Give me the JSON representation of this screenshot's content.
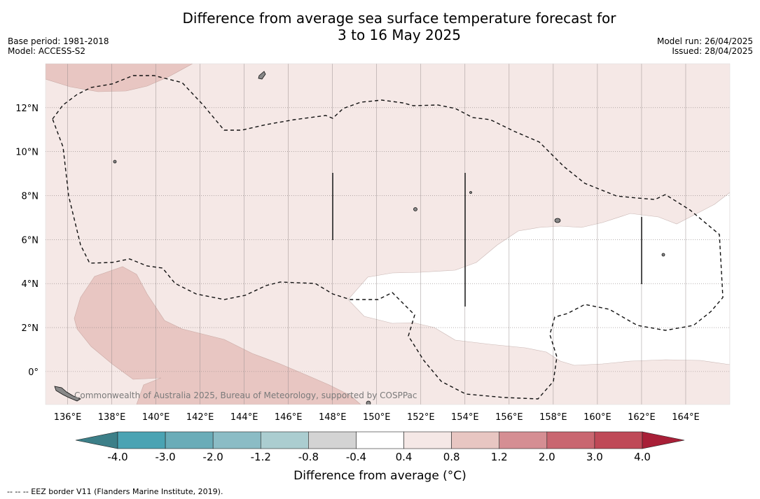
{
  "title_line1": "Difference from average sea surface temperature forecast for",
  "title_line2": "3 to 16 May 2025",
  "meta_left": {
    "base_period": "Base period: 1981-2018",
    "model": "Model: ACCESS-S2"
  },
  "meta_right": {
    "model_run": "Model run: 26/04/2025",
    "issued": "Issued: 28/04/2025"
  },
  "map": {
    "lon_range": [
      135,
      166
    ],
    "lat_range": [
      -1.5,
      14
    ],
    "lon_ticks": [
      "136°E",
      "138°E",
      "140°E",
      "142°E",
      "144°E",
      "146°E",
      "148°E",
      "150°E",
      "152°E",
      "154°E",
      "156°E",
      "158°E",
      "160°E",
      "162°E",
      "164°E"
    ],
    "lat_ticks": [
      "12°N",
      "10°N",
      "8°N",
      "6°N",
      "4°N",
      "2°N",
      "0°"
    ],
    "copyright": "Commonwealth of Australia 2025, Bureau of Meteorology, supported by COSPPac",
    "colors": {
      "band_0_4_0_8": "#f5e8e6",
      "band_0_8_1_2": "#e8c6c2",
      "band_neutral": "#ffffff"
    }
  },
  "colorbar": {
    "label": "Difference from average (°C)",
    "tick_labels": [
      "-4.0",
      "-3.0",
      "-2.0",
      "-1.2",
      "-0.8",
      "-0.4",
      "0.4",
      "0.8",
      "1.2",
      "2.0",
      "3.0",
      "4.0"
    ],
    "colors": [
      "#3c7f88",
      "#4aa3b3",
      "#6aacb8",
      "#8bbcc5",
      "#abcdd0",
      "#d3d3d3",
      "#ffffff",
      "#f5e8e6",
      "#e8c6c2",
      "#d58e93",
      "#c96670",
      "#bf4957",
      "#a81f37"
    ]
  },
  "footnote": "--  --  -- EEZ border V11 (Flanders Marine Institute, 2019)."
}
